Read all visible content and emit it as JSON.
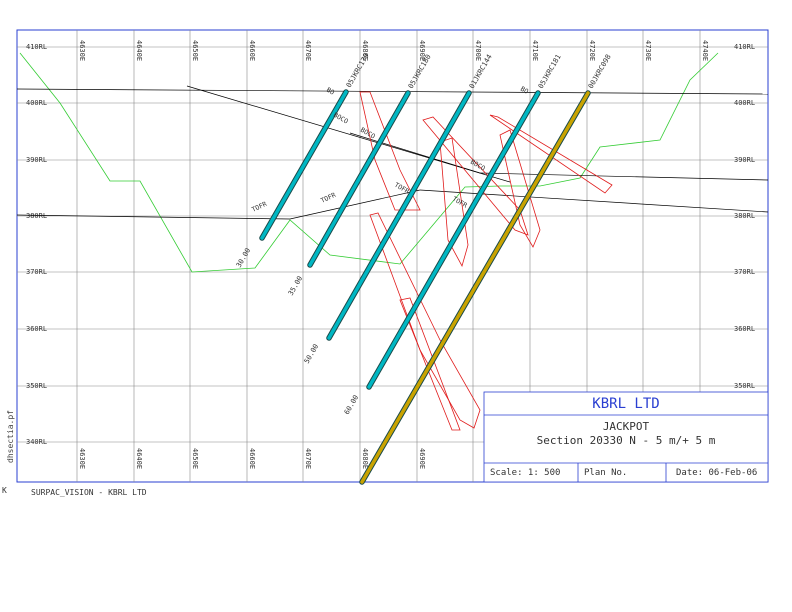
{
  "grid": {
    "rl_labels": [
      "410RL",
      "400RL",
      "390RL",
      "380RL",
      "370RL",
      "360RL",
      "350RL",
      "340RL"
    ],
    "easting_labels": [
      "4630E",
      "4640E",
      "4650E",
      "4660E",
      "4670E",
      "4680E",
      "4690E",
      "4700E",
      "4710E",
      "4720E",
      "4730E",
      "4740E"
    ],
    "bottom_easting_labels": [
      "4630E",
      "4640E",
      "4650E",
      "4660E",
      "4670E",
      "4680E",
      "4690E"
    ]
  },
  "drillholes": [
    {
      "name": "05JKRC179",
      "depth_label": "30.00"
    },
    {
      "name": "05JKRC180",
      "depth_label": "35.00"
    },
    {
      "name": "01JKRC144",
      "depth_label": "50.00"
    },
    {
      "name": "05JKRC181",
      "depth_label": "60.00"
    },
    {
      "name": "00JKRC098",
      "depth_label": ""
    }
  ],
  "surface_labels": {
    "boco": "BOCO",
    "tofr": "TOFR",
    "bo": "BO"
  },
  "title_block": {
    "company": "KBRL LTD",
    "project": "JACKPOT",
    "section": "Section 20330 N - 5 m/+ 5 m",
    "scale": "Scale: 1: 500",
    "plan_no": "Plan No.",
    "date": "Date: 06-Feb-06"
  },
  "side_label": "dhsectia.pf",
  "footer": "SURPAC_VISION - KBRL LTD",
  "corner_glyph": "K",
  "colors": {
    "frame": "#2a3fd1",
    "grid": "#888888",
    "topography": "#33cc33",
    "drillhole": "#00b7c3",
    "planned_hole": "#c9a300",
    "lode": "#e01b1b",
    "text": "#333333"
  }
}
